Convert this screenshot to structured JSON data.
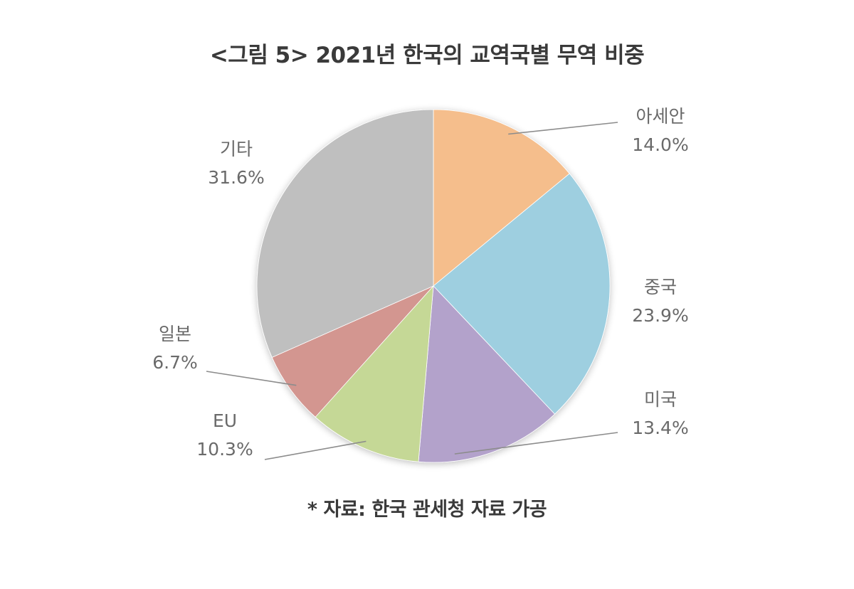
{
  "chart_data": {
    "type": "pie",
    "title": "<그림 5> 2021년 한국의 교역국별 무역 비중",
    "source": "* 자료: 한국 관세청 자료 가공",
    "categories": [
      "아세안",
      "중국",
      "미국",
      "EU",
      "일본",
      "기타"
    ],
    "values": [
      14.0,
      23.9,
      13.4,
      10.3,
      6.7,
      31.6
    ],
    "value_labels": [
      "14.0%",
      "23.9%",
      "13.4%",
      "10.3%",
      "6.7%",
      "31.6%"
    ],
    "colors": [
      "#F5BE8C",
      "#9ECFE0",
      "#B3A2CB",
      "#C5D896",
      "#D39690",
      "#BFBFBF"
    ],
    "start_angle": "12 o'clock",
    "direction": "clockwise",
    "legend": "none"
  }
}
